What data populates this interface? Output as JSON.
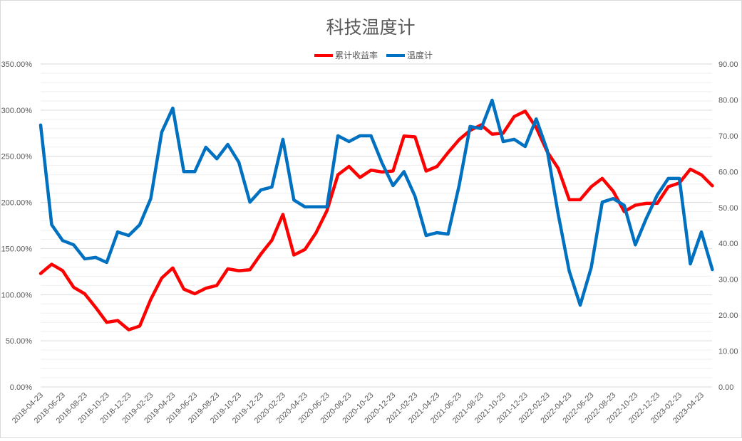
{
  "chart_data": {
    "type": "line",
    "title": "科技温度计",
    "legend_position": "top",
    "grid": true,
    "x": [
      "2018-04-23",
      "2018-05-23",
      "2018-06-23",
      "2018-07-23",
      "2018-08-23",
      "2018-09-23",
      "2018-10-23",
      "2018-11-23",
      "2018-12-23",
      "2019-01-23",
      "2019-02-23",
      "2019-03-23",
      "2019-04-23",
      "2019-05-23",
      "2019-06-23",
      "2019-07-23",
      "2019-08-23",
      "2019-09-23",
      "2019-10-23",
      "2019-11-23",
      "2019-12-23",
      "2020-01-23",
      "2020-02-23",
      "2020-03-23",
      "2020-04-23",
      "2020-05-23",
      "2020-06-23",
      "2020-07-23",
      "2020-08-23",
      "2020-09-23",
      "2020-10-23",
      "2020-11-23",
      "2020-12-23",
      "2021-01-23",
      "2021-02-23",
      "2021-03-23",
      "2021-04-23",
      "2021-05-23",
      "2021-06-23",
      "2021-07-23",
      "2021-08-23",
      "2021-09-23",
      "2021-10-23",
      "2021-11-23",
      "2021-12-23",
      "2022-01-23",
      "2022-02-23",
      "2022-03-23",
      "2022-04-23",
      "2022-05-23",
      "2022-06-23",
      "2022-07-23",
      "2022-08-23",
      "2022-09-23",
      "2022-10-23",
      "2022-11-23",
      "2022-12-23",
      "2023-01-23",
      "2023-02-23",
      "2023-03-23",
      "2023-04-23",
      "2023-05-23"
    ],
    "x_tick_labels": [
      "2018-04-23",
      "2018-06-23",
      "2018-08-23",
      "2018-10-23",
      "2018-12-23",
      "2019-02-23",
      "2019-04-23",
      "2019-06-23",
      "2019-08-23",
      "2019-10-23",
      "2019-12-23",
      "2020-02-23",
      "2020-04-23",
      "2020-06-23",
      "2020-08-23",
      "2020-10-23",
      "2020-12-23",
      "2021-02-23",
      "2021-04-23",
      "2021-06-23",
      "2021-08-23",
      "2021-10-23",
      "2021-12-23",
      "2022-02-23",
      "2022-04-23",
      "2022-06-23",
      "2022-08-23",
      "2022-10-23",
      "2022-12-23",
      "2023-02-23",
      "2023-04-23"
    ],
    "y_left": {
      "ylim": [
        0,
        350
      ],
      "ticks": [
        "0.00%",
        "50.00%",
        "100.00%",
        "150.00%",
        "200.00%",
        "250.00%",
        "300.00%",
        "350.00%"
      ]
    },
    "y_right": {
      "ylim": [
        0,
        90
      ],
      "ticks": [
        "0.00",
        "10.00",
        "20.00",
        "30.00",
        "40.00",
        "50.00",
        "60.00",
        "70.00",
        "80.00",
        "90.00"
      ]
    },
    "series": [
      {
        "name": "累计收益率",
        "axis": "left",
        "unit": "%",
        "color": "#ff0000",
        "values": [
          123,
          133,
          126,
          108,
          101,
          86,
          70,
          72,
          62,
          66,
          95,
          118,
          129,
          106,
          101,
          107,
          110,
          128,
          126,
          127,
          144,
          159,
          187,
          143,
          149,
          167,
          191,
          230,
          239,
          227,
          235,
          233,
          234,
          272,
          271,
          234,
          239,
          254,
          268,
          278,
          284,
          274,
          275,
          293,
          299,
          281,
          255,
          237,
          203,
          203,
          217,
          226,
          212,
          190,
          197,
          199,
          199,
          217,
          221,
          236,
          230,
          218
        ]
      },
      {
        "name": "温度计",
        "axis": "right",
        "color": "#0070c0",
        "values": [
          73,
          45.2,
          40.8,
          39.6,
          35.7,
          36.1,
          34.7,
          43.2,
          42.2,
          45.2,
          52.5,
          71,
          77.7,
          60,
          60,
          66.8,
          63.6,
          67.6,
          62.6,
          51.5,
          54.9,
          55.7,
          69,
          52.1,
          50.2,
          50.2,
          50.2,
          70,
          68.4,
          70,
          70,
          62.4,
          56.1,
          60,
          53.1,
          42.2,
          43,
          42.6,
          56.1,
          72.6,
          72,
          79.9,
          68.4,
          69,
          67,
          74.7,
          66,
          48.2,
          32.3,
          22.8,
          33.3,
          51.5,
          52.5,
          50.6,
          39.6,
          47,
          53.5,
          58.1,
          58.1,
          34.3,
          43.2,
          32.7
        ]
      }
    ]
  }
}
